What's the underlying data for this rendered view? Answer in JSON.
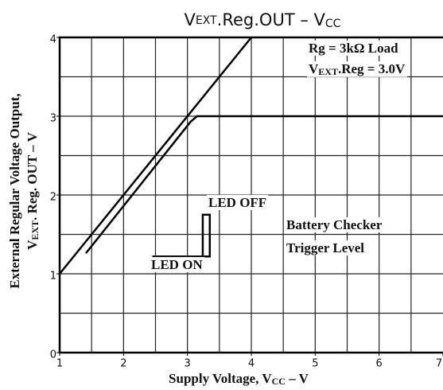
{
  "chart_data": {
    "type": "line",
    "title": [
      "V",
      "EXT",
      ".Reg.OUT  –  V",
      "CC"
    ],
    "x_label": [
      "Supply Voltage, V",
      "CC",
      "  –  V"
    ],
    "y_label": [
      [
        "External Regular Voltage Output,"
      ],
      [
        "V",
        "EXT",
        ". Reg. OUT  –  V"
      ]
    ],
    "annotations": [
      [
        "Rg = 3kΩ Load"
      ],
      [
        "V",
        "EXT",
        ".Reg = 3.0V"
      ],
      [
        "LED OFF"
      ],
      [
        "LED ON"
      ],
      [
        "Battery Checker"
      ],
      [
        "Trigger Level"
      ]
    ],
    "xlim": [
      1,
      7
    ],
    "ylim": [
      0,
      4
    ],
    "xticks": [
      1,
      2,
      3,
      4,
      5,
      6,
      7
    ],
    "yticks": [
      0,
      1,
      2,
      3,
      4
    ],
    "xgrid": [
      1.5,
      2,
      2.5,
      3,
      3.5,
      4,
      4.5,
      5,
      5.5,
      6,
      6.5
    ],
    "ygrid": [
      0.5,
      1,
      1.5,
      2,
      2.5,
      3,
      3.5
    ],
    "grid": true,
    "series": [
      {
        "color": "#000000",
        "x": [
          1,
          4
        ],
        "values": [
          1,
          4
        ]
      },
      {
        "color": "#000000",
        "x": [
          1.41,
          3.05,
          3.15,
          7
        ],
        "values": [
          1.26,
          2.93,
          3.0,
          3.0
        ]
      },
      {
        "color": "#000000",
        "x": [
          2.45,
          3.35,
          3.35,
          3.24,
          3.24
        ],
        "values": [
          1.22,
          1.22,
          1.75,
          1.75,
          1.22
        ]
      }
    ]
  }
}
